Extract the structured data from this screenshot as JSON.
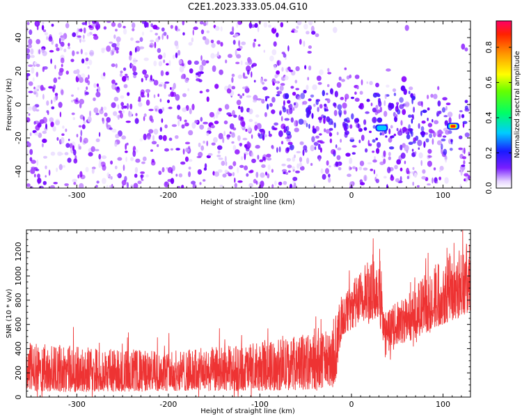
{
  "title": "C2E1.2023.333.05.04.G10",
  "chart_data": [
    {
      "type": "heatmap",
      "xlabel": "Height of straight line (km)",
      "ylabel": "Frequency (Hz)",
      "xlim": [
        -355,
        130
      ],
      "ylim": [
        -50,
        50
      ],
      "xticks": [
        -300,
        -200,
        -100,
        0,
        100
      ],
      "yticks": [
        -40,
        -20,
        0,
        20,
        40
      ],
      "colorbar": {
        "label": "Normalized spectral amplitude",
        "range": [
          0.0,
          0.95
        ],
        "ticks": [
          0.0,
          0.2,
          0.4,
          0.6,
          0.8
        ],
        "colormap": "rainbow (violet → blue → cyan → green → yellow → orange → red)"
      },
      "features": [
        {
          "x": 33,
          "y": -14,
          "amplitude": 0.25
        },
        {
          "x": 111,
          "y": -13,
          "amplitude": 0.9
        }
      ]
    },
    {
      "type": "line",
      "xlabel": "Height of straight line (km)",
      "ylabel": "SNR (10 * v/v)",
      "xlim": [
        -355,
        130
      ],
      "ylim": [
        0,
        1380
      ],
      "xticks": [
        -300,
        -200,
        -100,
        0,
        100
      ],
      "yticks": [
        0,
        200,
        400,
        600,
        800,
        1000,
        1200
      ],
      "color": "#ee3333",
      "series_envelope": [
        {
          "x": -355,
          "low": 50,
          "high": 450
        },
        {
          "x": -300,
          "low": 40,
          "high": 420
        },
        {
          "x": -200,
          "low": 50,
          "high": 380
        },
        {
          "x": -100,
          "low": 50,
          "high": 450
        },
        {
          "x": -50,
          "low": 60,
          "high": 520
        },
        {
          "x": -20,
          "low": 80,
          "high": 560
        },
        {
          "x": -17,
          "low": 150,
          "high": 700
        },
        {
          "x": -10,
          "low": 500,
          "high": 850
        },
        {
          "x": 10,
          "low": 600,
          "high": 1050
        },
        {
          "x": 30,
          "low": 650,
          "high": 1250
        },
        {
          "x": 33,
          "low": 500,
          "high": 1000
        },
        {
          "x": 36,
          "low": 420,
          "high": 700
        },
        {
          "x": 60,
          "low": 450,
          "high": 850
        },
        {
          "x": 100,
          "low": 600,
          "high": 1180
        },
        {
          "x": 130,
          "low": 700,
          "high": 1280
        }
      ]
    }
  ]
}
